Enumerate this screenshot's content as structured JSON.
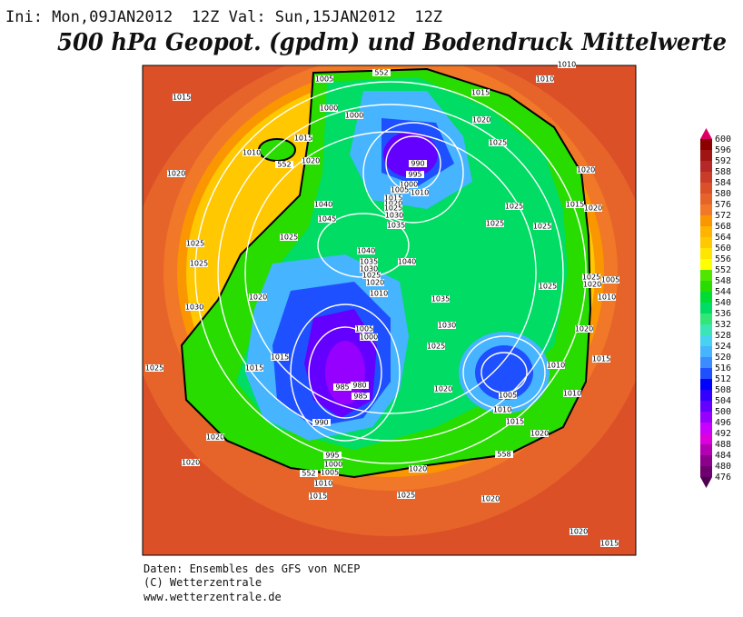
{
  "header": {
    "run": "Ini: Mon,09JAN2012  12Z Val: Sun,15JAN2012  12Z",
    "title": "500 hPa Geopot. (gpdm) und Bodendruck Mittelwerte"
  },
  "footer": [
    "Daten: Ensembles des GFS von NCEP",
    "(C) Wetterzentrale",
    "www.wetterzentrale.de"
  ],
  "map": {
    "colorbar": {
      "levels": [
        476,
        480,
        484,
        488,
        492,
        496,
        500,
        504,
        508,
        512,
        516,
        520,
        524,
        528,
        532,
        536,
        540,
        544,
        548,
        552,
        556,
        560,
        564,
        568,
        572,
        576,
        580,
        584,
        588,
        592,
        596,
        600
      ],
      "colors": [
        "#6e0070",
        "#8c008c",
        "#b400b4",
        "#dc00dc",
        "#c800ff",
        "#9600ff",
        "#6400ff",
        "#3200ff",
        "#0000ff",
        "#1e50ff",
        "#3c8cff",
        "#46b4ff",
        "#46d2f0",
        "#3ce6b4",
        "#32e678",
        "#00dc64",
        "#00dc32",
        "#28dc00",
        "#50e600",
        "#ffff00",
        "#ffe600",
        "#ffc800",
        "#ffb400",
        "#fa9600",
        "#f07828",
        "#e6642a",
        "#dc5028",
        "#c83c28",
        "#b42828",
        "#a01414",
        "#8c0000"
      ]
    },
    "isobar_labels": [
      1005,
      552,
      1015,
      1000,
      1000,
      1015,
      1010,
      1010,
      1020,
      1025,
      1015,
      1010,
      552,
      1020,
      990,
      995,
      1000,
      1005,
      1010,
      1015,
      1020,
      1025,
      1030,
      1035,
      1040,
      1045,
      1020,
      1020,
      1015,
      1020,
      1025,
      1025,
      1025,
      1025,
      1025,
      1025,
      1040,
      1040,
      1035,
      1030,
      1025,
      1020,
      1010,
      1020,
      1030,
      1035,
      1025,
      1025,
      1020,
      1010,
      1005,
      1030,
      1005,
      1000,
      1025,
      1020,
      1015,
      1015,
      1025,
      1010,
      1015,
      985,
      980,
      985,
      1020,
      1010,
      1005,
      1010,
      1015,
      1020,
      990,
      1020,
      995,
      1000,
      1005,
      558,
      552,
      1020,
      1010,
      1020,
      1015,
      1025,
      1020,
      1020,
      1015
    ]
  }
}
